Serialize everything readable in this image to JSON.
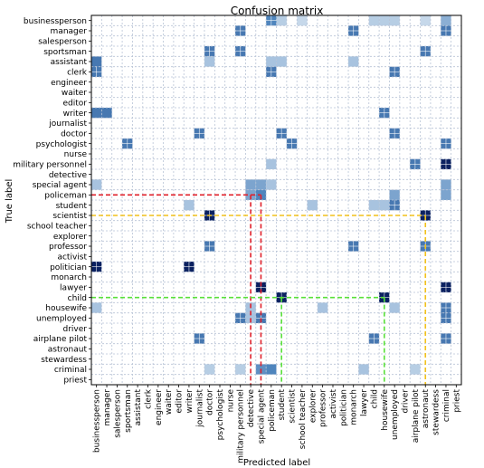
{
  "chart_data": {
    "type": "heatmap",
    "title": "Confusion matrix",
    "xlabel": "Predicted label",
    "ylabel": "True label",
    "grid": true,
    "colors": {
      "low": "#c6d8ea",
      "mid": "#4f85bd",
      "high": "#0b2160",
      "grid": "#b9c4d6",
      "red_line": "#e0202a",
      "yellow_line": "#f2c21c",
      "green_line": "#58e03a"
    },
    "labels": [
      "businessperson",
      "manager",
      "salesperson",
      "sportsman",
      "assistant",
      "clerk",
      "engineer",
      "waiter",
      "editor",
      "writer",
      "journalist",
      "doctor",
      "psychologist",
      "nurse",
      "military personnel",
      "detective",
      "special agent",
      "policeman",
      "student",
      "scientist",
      "school teacher",
      "explorer",
      "professor",
      "activist",
      "politician",
      "monarch",
      "lawyer",
      "child",
      "housewife",
      "unemployed",
      "driver",
      "airplane pilot",
      "astronaut",
      "stewardess",
      "criminal",
      "priest"
    ],
    "cells": [
      {
        "row": "businessperson",
        "col": "policeman",
        "value": 0.6
      },
      {
        "row": "businessperson",
        "col": "student",
        "value": 0.25
      },
      {
        "row": "businessperson",
        "col": "school teacher",
        "value": 0.2
      },
      {
        "row": "businessperson",
        "col": "child",
        "value": 0.25
      },
      {
        "row": "businessperson",
        "col": "housewife",
        "value": 0.25
      },
      {
        "row": "businessperson",
        "col": "unemployed",
        "value": 0.25
      },
      {
        "row": "businessperson",
        "col": "astronaut",
        "value": 0.2
      },
      {
        "row": "businessperson",
        "col": "criminal",
        "value": 0.4
      },
      {
        "row": "manager",
        "col": "military personnel",
        "value": 0.65
      },
      {
        "row": "manager",
        "col": "monarch",
        "value": 0.65
      },
      {
        "row": "manager",
        "col": "criminal",
        "value": 0.65
      },
      {
        "row": "sportsman",
        "col": "doctor",
        "value": 0.65
      },
      {
        "row": "sportsman",
        "col": "military personnel",
        "value": 0.65
      },
      {
        "row": "sportsman",
        "col": "astronaut",
        "value": 0.65
      },
      {
        "row": "assistant",
        "col": "businessperson",
        "value": 0.65
      },
      {
        "row": "assistant",
        "col": "doctor",
        "value": 0.3
      },
      {
        "row": "assistant",
        "col": "policeman",
        "value": 0.3
      },
      {
        "row": "assistant",
        "col": "student",
        "value": 0.3
      },
      {
        "row": "assistant",
        "col": "monarch",
        "value": 0.3
      },
      {
        "row": "clerk",
        "col": "businessperson",
        "value": 0.65
      },
      {
        "row": "clerk",
        "col": "policeman",
        "value": 0.65
      },
      {
        "row": "clerk",
        "col": "unemployed",
        "value": 0.65
      },
      {
        "row": "writer",
        "col": "businessperson",
        "value": 0.65
      },
      {
        "row": "writer",
        "col": "manager",
        "value": 0.65
      },
      {
        "row": "writer",
        "col": "housewife",
        "value": 0.65
      },
      {
        "row": "doctor",
        "col": "journalist",
        "value": 0.65
      },
      {
        "row": "doctor",
        "col": "student",
        "value": 0.65
      },
      {
        "row": "doctor",
        "col": "unemployed",
        "value": 0.65
      },
      {
        "row": "psychologist",
        "col": "sportsman",
        "value": 0.65
      },
      {
        "row": "psychologist",
        "col": "scientist",
        "value": 0.65
      },
      {
        "row": "psychologist",
        "col": "criminal",
        "value": 0.65
      },
      {
        "row": "military personnel",
        "col": "policeman",
        "value": 0.3
      },
      {
        "row": "military personnel",
        "col": "airplane pilot",
        "value": 0.65
      },
      {
        "row": "military personnel",
        "col": "criminal",
        "value": 1.0
      },
      {
        "row": "special agent",
        "col": "businessperson",
        "value": 0.3
      },
      {
        "row": "special agent",
        "col": "detective",
        "value": 0.45
      },
      {
        "row": "special agent",
        "col": "special agent",
        "value": 0.45
      },
      {
        "row": "special agent",
        "col": "policeman",
        "value": 0.3
      },
      {
        "row": "special agent",
        "col": "criminal",
        "value": 0.45
      },
      {
        "row": "policeman",
        "col": "detective",
        "value": 0.45
      },
      {
        "row": "policeman",
        "col": "special agent",
        "value": 0.6
      },
      {
        "row": "policeman",
        "col": "unemployed",
        "value": 0.45
      },
      {
        "row": "policeman",
        "col": "criminal",
        "value": 0.45
      },
      {
        "row": "student",
        "col": "writer",
        "value": 0.3
      },
      {
        "row": "student",
        "col": "explorer",
        "value": 0.3
      },
      {
        "row": "student",
        "col": "child",
        "value": 0.3
      },
      {
        "row": "student",
        "col": "housewife",
        "value": 0.3
      },
      {
        "row": "student",
        "col": "unemployed",
        "value": 0.65
      },
      {
        "row": "scientist",
        "col": "doctor",
        "value": 1.0
      },
      {
        "row": "scientist",
        "col": "astronaut",
        "value": 1.0
      },
      {
        "row": "professor",
        "col": "doctor",
        "value": 0.65
      },
      {
        "row": "professor",
        "col": "monarch",
        "value": 0.65
      },
      {
        "row": "professor",
        "col": "astronaut",
        "value": 0.65
      },
      {
        "row": "politician",
        "col": "businessperson",
        "value": 1.0
      },
      {
        "row": "politician",
        "col": "writer",
        "value": 1.0
      },
      {
        "row": "lawyer",
        "col": "special agent",
        "value": 1.0
      },
      {
        "row": "lawyer",
        "col": "criminal",
        "value": 1.0
      },
      {
        "row": "child",
        "col": "student",
        "value": 1.0
      },
      {
        "row": "child",
        "col": "housewife",
        "value": 1.0
      },
      {
        "row": "housewife",
        "col": "businessperson",
        "value": 0.3
      },
      {
        "row": "housewife",
        "col": "detective",
        "value": 0.3
      },
      {
        "row": "housewife",
        "col": "professor",
        "value": 0.3
      },
      {
        "row": "housewife",
        "col": "unemployed",
        "value": 0.3
      },
      {
        "row": "housewife",
        "col": "criminal",
        "value": 0.65
      },
      {
        "row": "unemployed",
        "col": "military personnel",
        "value": 0.65
      },
      {
        "row": "unemployed",
        "col": "detective",
        "value": 0.3
      },
      {
        "row": "unemployed",
        "col": "special agent",
        "value": 0.65
      },
      {
        "row": "unemployed",
        "col": "criminal",
        "value": 0.65
      },
      {
        "row": "airplane pilot",
        "col": "journalist",
        "value": 0.65
      },
      {
        "row": "airplane pilot",
        "col": "child",
        "value": 0.65
      },
      {
        "row": "airplane pilot",
        "col": "criminal",
        "value": 0.65
      },
      {
        "row": "criminal",
        "col": "doctor",
        "value": 0.25
      },
      {
        "row": "criminal",
        "col": "military personnel",
        "value": 0.25
      },
      {
        "row": "criminal",
        "col": "special agent",
        "value": 0.55
      },
      {
        "row": "criminal",
        "col": "policeman",
        "value": 0.6
      },
      {
        "row": "criminal",
        "col": "lawyer",
        "value": 0.3
      },
      {
        "row": "criminal",
        "col": "airplane pilot",
        "value": 0.25
      }
    ],
    "marked_cells": [
      {
        "row": "scientist",
        "col": "doctor"
      },
      {
        "row": "scientist",
        "col": "astronaut"
      },
      {
        "row": "politician",
        "col": "businessperson"
      },
      {
        "row": "politician",
        "col": "writer"
      },
      {
        "row": "lawyer",
        "col": "special agent"
      },
      {
        "row": "lawyer",
        "col": "criminal"
      },
      {
        "row": "child",
        "col": "student"
      },
      {
        "row": "child",
        "col": "housewife"
      },
      {
        "row": "military personnel",
        "col": "criminal"
      },
      {
        "row": "sportsman",
        "col": "doctor"
      },
      {
        "row": "sportsman",
        "col": "military personnel"
      },
      {
        "row": "sportsman",
        "col": "astronaut"
      },
      {
        "row": "manager",
        "col": "military personnel"
      },
      {
        "row": "manager",
        "col": "monarch"
      },
      {
        "row": "manager",
        "col": "criminal"
      },
      {
        "row": "clerk",
        "col": "businessperson"
      },
      {
        "row": "clerk",
        "col": "policeman"
      },
      {
        "row": "clerk",
        "col": "unemployed"
      },
      {
        "row": "writer",
        "col": "housewife"
      },
      {
        "row": "doctor",
        "col": "journalist"
      },
      {
        "row": "doctor",
        "col": "student"
      },
      {
        "row": "doctor",
        "col": "unemployed"
      },
      {
        "row": "psychologist",
        "col": "sportsman"
      },
      {
        "row": "psychologist",
        "col": "scientist"
      },
      {
        "row": "psychologist",
        "col": "criminal"
      },
      {
        "row": "military personnel",
        "col": "airplane pilot"
      },
      {
        "row": "student",
        "col": "unemployed"
      },
      {
        "row": "professor",
        "col": "doctor"
      },
      {
        "row": "professor",
        "col": "monarch"
      },
      {
        "row": "professor",
        "col": "astronaut"
      },
      {
        "row": "unemployed",
        "col": "military personnel"
      },
      {
        "row": "unemployed",
        "col": "special agent"
      },
      {
        "row": "unemployed",
        "col": "criminal"
      },
      {
        "row": "airplane pilot",
        "col": "journalist"
      },
      {
        "row": "airplane pilot",
        "col": "child"
      },
      {
        "row": "airplane pilot",
        "col": "criminal"
      },
      {
        "row": "businessperson",
        "col": "policeman"
      },
      {
        "row": "housewife",
        "col": "criminal"
      }
    ],
    "guide_lines": [
      {
        "color": "red",
        "row": "policeman",
        "from_col": "businessperson",
        "to_col": "special agent"
      },
      {
        "color": "red",
        "row": "policeman",
        "from_col": "detective",
        "to_col": "detective",
        "vertical": true
      },
      {
        "color": "yellow",
        "row": "scientist",
        "from_col": "businessperson",
        "to_col": "astronaut"
      },
      {
        "color": "green",
        "row": "child",
        "from_col": "businessperson",
        "to_col": "housewife"
      }
    ]
  }
}
